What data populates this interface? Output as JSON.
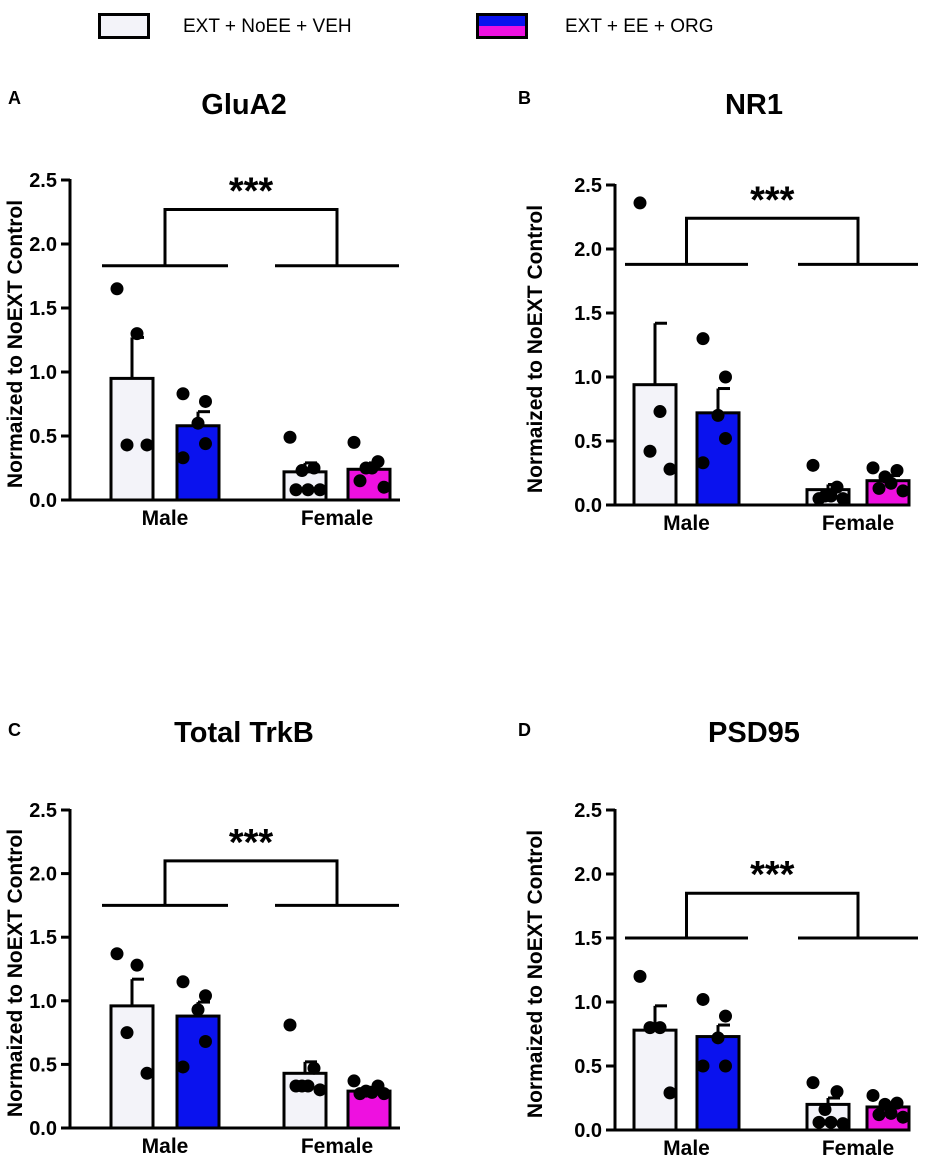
{
  "legend": [
    {
      "label": "EXT + NoEE + VEH",
      "colors": [
        "#f3f3f9"
      ]
    },
    {
      "label": "EXT + EE + ORG",
      "colors": [
        "#0a12ee",
        "#ee10e0"
      ]
    }
  ],
  "colors": {
    "veh": "#f3f3f9",
    "ee_male": "#0a12ee",
    "ee_female": "#ee10e0",
    "ink": "#000000"
  },
  "chart_data": [
    {
      "type": "bar",
      "letter": "A",
      "title": "GluA2",
      "ylabel": "Normaized to NoEXT Control",
      "xlabel": "",
      "ylim": [
        0,
        2.5
      ],
      "yticks": [
        "0.0",
        "0.5",
        "1.0",
        "1.5",
        "2.0",
        "2.5"
      ],
      "categories": [
        "Male",
        "Female"
      ],
      "significance": "***",
      "series": [
        {
          "name": "EXT + NoEE + VEH",
          "values": [
            0.95,
            0.22
          ],
          "errors": [
            0.32,
            0.07
          ],
          "points": [
            [
              1.65,
              1.3,
              0.43,
              0.43
            ],
            [
              0.49,
              0.25,
              0.23,
              0.08,
              0.08,
              0.08
            ]
          ]
        },
        {
          "name": "EXT + EE + ORG",
          "values": [
            0.58,
            0.24
          ],
          "errors": [
            0.11,
            0.05
          ],
          "points": [
            [
              0.83,
              0.77,
              0.6,
              0.44,
              0.33
            ],
            [
              0.45,
              0.3,
              0.25,
              0.25,
              0.15,
              0.1
            ]
          ]
        }
      ]
    },
    {
      "type": "bar",
      "letter": "B",
      "title": "NR1",
      "ylabel": "Normaized to NoEXT Control",
      "xlabel": "",
      "ylim": [
        0,
        2.5
      ],
      "yticks": [
        "0.0",
        "0.5",
        "1.0",
        "1.5",
        "2.0",
        "2.5"
      ],
      "categories": [
        "Male",
        "Female"
      ],
      "significance": "***",
      "series": [
        {
          "name": "EXT + NoEE + VEH",
          "values": [
            0.94,
            0.12
          ],
          "errors": [
            0.48,
            0.04
          ],
          "points": [
            [
              2.36,
              0.73,
              0.42,
              0.28
            ],
            [
              0.31,
              0.14,
              0.07,
              0.07,
              0.05,
              0.05
            ]
          ]
        },
        {
          "name": "EXT + EE + ORG",
          "values": [
            0.72,
            0.19
          ],
          "errors": [
            0.19,
            0.04
          ],
          "points": [
            [
              1.3,
              1.0,
              0.7,
              0.52,
              0.33
            ],
            [
              0.29,
              0.27,
              0.22,
              0.17,
              0.13,
              0.11
            ]
          ]
        }
      ]
    },
    {
      "type": "bar",
      "letter": "C",
      "title": "Total TrkB",
      "ylabel": "Normaized to NoEXT Control",
      "xlabel": "",
      "ylim": [
        0,
        2.5
      ],
      "yticks": [
        "0.0",
        "0.5",
        "1.0",
        "1.5",
        "2.0",
        "2.5"
      ],
      "categories": [
        "Male",
        "Female"
      ],
      "significance": "***",
      "series": [
        {
          "name": "EXT + NoEE + VEH",
          "values": [
            0.96,
            0.43
          ],
          "errors": [
            0.21,
            0.09
          ],
          "points": [
            [
              1.37,
              1.28,
              0.75,
              0.43
            ],
            [
              0.81,
              0.47,
              0.33,
              0.33,
              0.33,
              0.3
            ]
          ]
        },
        {
          "name": "EXT + EE + ORG",
          "values": [
            0.88,
            0.29
          ],
          "errors": [
            0.11,
            0.03
          ],
          "points": [
            [
              1.15,
              1.04,
              0.93,
              0.68,
              0.48
            ],
            [
              0.37,
              0.33,
              0.29,
              0.28,
              0.27,
              0.27
            ]
          ]
        }
      ]
    },
    {
      "type": "bar",
      "letter": "D",
      "title": "PSD95",
      "ylabel": "Normaized to NoEXT Control",
      "xlabel": "",
      "ylim": [
        0,
        2.5
      ],
      "yticks": [
        "0.0",
        "0.5",
        "1.0",
        "1.5",
        "2.0",
        "2.5"
      ],
      "categories": [
        "Male",
        "Female"
      ],
      "significance": "***",
      "series": [
        {
          "name": "EXT + NoEE + VEH",
          "values": [
            0.78,
            0.2
          ],
          "errors": [
            0.19,
            0.05
          ],
          "points": [
            [
              1.2,
              0.8,
              0.8,
              0.29
            ],
            [
              0.37,
              0.3,
              0.16,
              0.06,
              0.06,
              0.05
            ]
          ]
        },
        {
          "name": "EXT + EE + ORG",
          "values": [
            0.73,
            0.18
          ],
          "errors": [
            0.09,
            0.03
          ],
          "points": [
            [
              1.02,
              0.89,
              0.72,
              0.5,
              0.5
            ],
            [
              0.27,
              0.21,
              0.2,
              0.13,
              0.12,
              0.1
            ]
          ]
        }
      ]
    }
  ]
}
